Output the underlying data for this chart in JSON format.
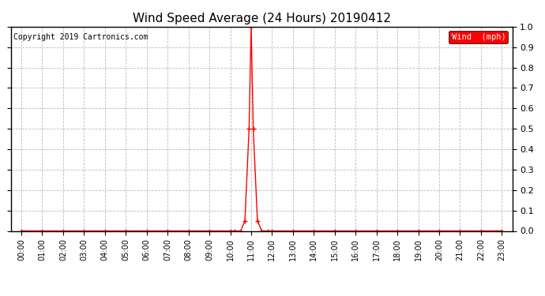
{
  "title": "Wind Speed Average (24 Hours) 20190412",
  "copyright_text": "Copyright 2019 Cartronics.com",
  "legend_label": "Wind  (mph)",
  "legend_bg": "#ff0000",
  "legend_text_color": "#ffffff",
  "line_color": "#ff0000",
  "marker_color": "#000000",
  "background_color": "#ffffff",
  "grid_color": "#bbbbbb",
  "ylim": [
    0.0,
    1.0
  ],
  "yticks": [
    0.0,
    0.1,
    0.2,
    0.3,
    0.4,
    0.5,
    0.6,
    0.7,
    0.8,
    0.9,
    1.0
  ],
  "x_tick_labels": [
    "00:00",
    "01:00",
    "02:00",
    "03:00",
    "04:00",
    "05:00",
    "06:00",
    "07:00",
    "08:00",
    "09:00",
    "10:00",
    "11:00",
    "12:00",
    "13:00",
    "14:00",
    "15:00",
    "16:00",
    "17:00",
    "18:00",
    "19:00",
    "20:00",
    "21:00",
    "22:00",
    "23:00"
  ],
  "key_x": [
    0,
    1,
    2,
    3,
    4,
    5,
    6,
    7,
    8,
    9,
    10,
    10.2,
    10.5,
    10.7,
    10.9,
    11.0,
    11.1,
    11.3,
    11.5,
    11.8,
    12,
    13,
    14,
    15,
    16,
    17,
    18,
    19,
    20,
    21,
    22,
    23
  ],
  "key_y": [
    0,
    0,
    0,
    0,
    0,
    0,
    0,
    0,
    0,
    0,
    0,
    0,
    0,
    0.05,
    0.5,
    1.0,
    0.5,
    0.05,
    0,
    0,
    0,
    0,
    0,
    0,
    0,
    0,
    0,
    0,
    0,
    0,
    0,
    0
  ]
}
